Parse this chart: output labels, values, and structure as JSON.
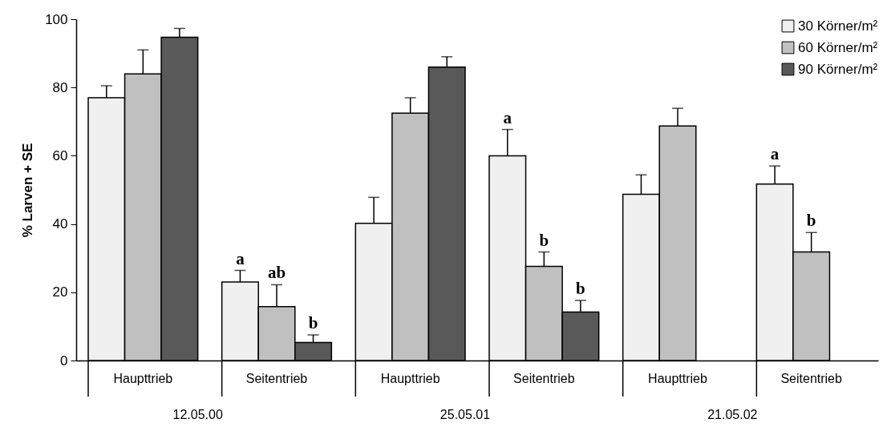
{
  "chart_data": {
    "type": "bar",
    "ylabel": "% Larven + SE",
    "categories": [
      "Haupttrieb",
      "Seitentrieb",
      "Haupttrieb",
      "Seitentrieb",
      "Haupttrieb",
      "Seitentrieb"
    ],
    "series": [
      {
        "name": "30 Körner/m²",
        "color": "#f0f0f0",
        "values": [
          77,
          23,
          40.2,
          60,
          48.7,
          51.7
        ],
        "errors": [
          [
            77,
            80.5
          ],
          [
            23,
            26.4
          ],
          [
            40.2,
            47.8
          ],
          [
            60,
            67.7
          ],
          [
            48.7,
            54.4
          ],
          [
            51.7,
            57
          ]
        ],
        "value_labels": [
          null,
          "a",
          null,
          "a",
          null,
          "a"
        ]
      },
      {
        "name": "60 Körner/m²",
        "color": "#c0c0c0",
        "values": [
          84,
          15.8,
          72.5,
          27.6,
          68.7,
          31.8
        ],
        "errors": [
          [
            84,
            91
          ],
          [
            15.8,
            22.2
          ],
          [
            72.5,
            77
          ],
          [
            27.6,
            31.8
          ],
          [
            68.7,
            73.9
          ],
          [
            31.8,
            37.5
          ]
        ],
        "value_labels": [
          null,
          "ab",
          null,
          "b",
          null,
          "b"
        ]
      },
      {
        "name": "90 Körner/m²",
        "color": "#595959",
        "values": [
          94.7,
          5.3,
          86,
          14.2,
          null,
          null
        ],
        "errors": [
          [
            94.7,
            97.3
          ],
          [
            5.3,
            7.5
          ],
          [
            86,
            89
          ],
          [
            14.2,
            17.6
          ],
          null,
          null
        ],
        "value_labels": [
          null,
          "b",
          null,
          "b",
          null,
          null
        ]
      }
    ],
    "annotations": [
      "12.05.00",
      "25.05.01",
      "21.05.02"
    ],
    "ylim": [
      0,
      100
    ],
    "yticks": [
      0,
      20,
      40,
      60,
      80,
      100
    ],
    "grid": false,
    "legend": "top right"
  }
}
